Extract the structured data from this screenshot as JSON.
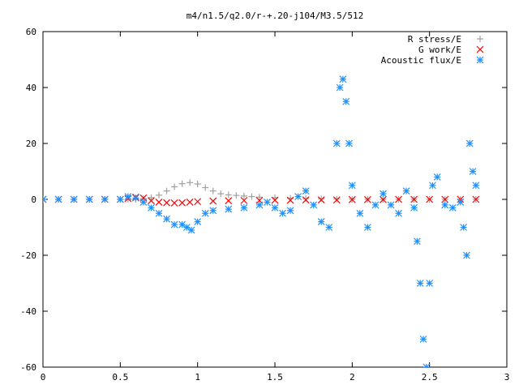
{
  "chart_data": {
    "type": "scatter",
    "title": "m4/n1.5/q2.0/r-+.20-j104/M3.5/512",
    "xlabel": "",
    "ylabel": "",
    "xlim": [
      0,
      3
    ],
    "ylim": [
      -60,
      60
    ],
    "x_ticks": [
      0,
      0.5,
      1,
      1.5,
      2,
      2.5,
      3
    ],
    "x_tick_labels": [
      "0",
      "0.5",
      "1",
      "1.5",
      "2",
      "2.5",
      "3"
    ],
    "y_ticks": [
      -60,
      -40,
      -20,
      0,
      20,
      40,
      60
    ],
    "y_tick_labels": [
      "-60",
      "-40",
      "-20",
      "0",
      "20",
      "40",
      "60"
    ],
    "grid": false,
    "legend_position": "top-right",
    "series": [
      {
        "name": "R stress/E",
        "color": "#a0a0a0",
        "marker": "plus",
        "x": [
          0.0,
          0.1,
          0.2,
          0.3,
          0.4,
          0.5,
          0.55,
          0.6,
          0.65,
          0.7,
          0.75,
          0.8,
          0.85,
          0.9,
          0.95,
          1.0,
          1.05,
          1.1,
          1.15,
          1.2,
          1.25,
          1.3,
          1.35,
          1.4,
          1.5,
          1.6,
          1.7,
          1.8,
          1.9,
          2.0,
          2.1,
          2.2,
          2.3,
          2.4,
          2.5,
          2.6,
          2.7,
          2.8
        ],
        "y": [
          0,
          0,
          0,
          0,
          0,
          0,
          0,
          0,
          0.2,
          0.6,
          1.5,
          3,
          4.5,
          5.6,
          6,
          5.5,
          4.2,
          3,
          2,
          1.6,
          1.4,
          1.2,
          1,
          0.8,
          0.6,
          0.4,
          0.3,
          0.2,
          0.1,
          0,
          0,
          0,
          0,
          0,
          0,
          0,
          0,
          0
        ]
      },
      {
        "name": "G work/E",
        "color": "#ff0000",
        "marker": "cross",
        "x": [
          0.0,
          0.1,
          0.2,
          0.3,
          0.4,
          0.5,
          0.55,
          0.6,
          0.65,
          0.7,
          0.75,
          0.8,
          0.85,
          0.9,
          0.95,
          1.0,
          1.1,
          1.2,
          1.3,
          1.4,
          1.5,
          1.6,
          1.7,
          1.8,
          1.9,
          2.0,
          2.1,
          2.2,
          2.3,
          2.4,
          2.5,
          2.6,
          2.7,
          2.8
        ],
        "y": [
          0,
          0,
          0,
          0,
          0,
          0,
          0.3,
          0.8,
          0.5,
          -0.5,
          -1,
          -1.2,
          -1.3,
          -1.2,
          -1,
          -0.8,
          -0.6,
          -0.5,
          -0.4,
          -0.4,
          -0.3,
          -0.3,
          -0.2,
          -0.2,
          -0.2,
          -0.1,
          -0.1,
          -0.1,
          0,
          0,
          0,
          0,
          0,
          0
        ]
      },
      {
        "name": "Acoustic flux/E",
        "color": "#1e90ff",
        "marker": "star",
        "x": [
          0.0,
          0.1,
          0.2,
          0.3,
          0.4,
          0.5,
          0.55,
          0.6,
          0.65,
          0.7,
          0.75,
          0.8,
          0.85,
          0.9,
          0.93,
          0.96,
          1.0,
          1.05,
          1.1,
          1.2,
          1.3,
          1.4,
          1.45,
          1.5,
          1.55,
          1.6,
          1.65,
          1.7,
          1.75,
          1.8,
          1.85,
          1.9,
          1.92,
          1.94,
          1.96,
          1.98,
          2.0,
          2.05,
          2.1,
          2.15,
          2.2,
          2.25,
          2.3,
          2.35,
          2.4,
          2.42,
          2.44,
          2.46,
          2.48,
          2.5,
          2.52,
          2.55,
          2.6,
          2.65,
          2.7,
          2.72,
          2.74,
          2.76,
          2.78,
          2.8
        ],
        "y": [
          0,
          0,
          0,
          0,
          0,
          0,
          1,
          0.5,
          -1,
          -3,
          -5,
          -7,
          -9,
          -9,
          -10,
          -11,
          -8,
          -5,
          -4,
          -3.5,
          -3,
          -2,
          -1,
          -3,
          -5,
          -4,
          1,
          3,
          -2,
          -8,
          -10,
          20,
          40,
          43,
          35,
          20,
          5,
          -5,
          -10,
          -2,
          2,
          -2,
          -5,
          3,
          -3,
          -15,
          -30,
          -50,
          -60,
          -30,
          5,
          8,
          -2,
          -3,
          -1,
          -10,
          -20,
          20,
          10,
          5
        ]
      }
    ]
  }
}
